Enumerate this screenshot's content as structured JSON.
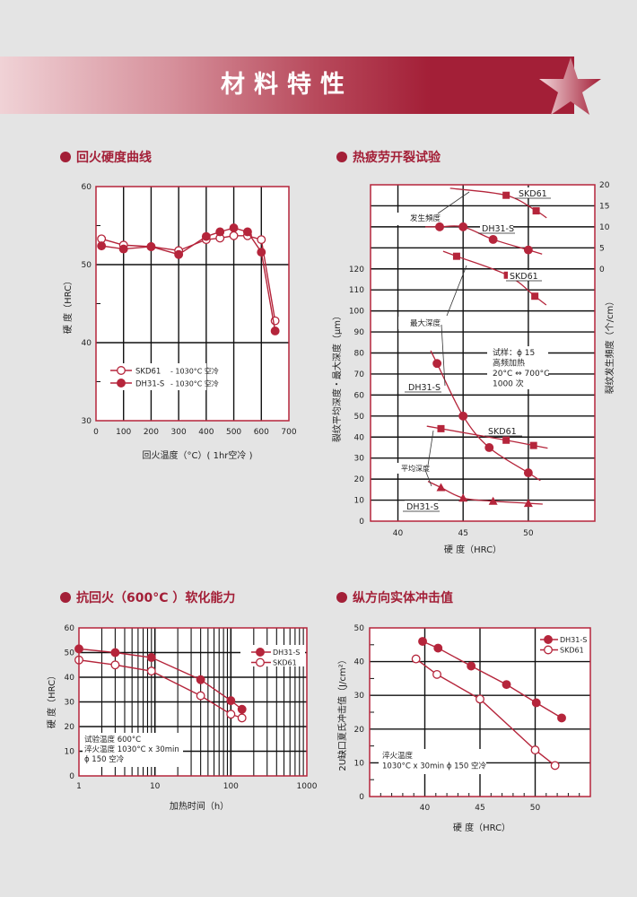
{
  "page": {
    "title": "材料特性",
    "accent_color": "#a31f37",
    "sections": [
      "回火硬度曲线",
      "热疲劳开裂试验",
      "抗回火（600°C ）软化能力",
      "纵方向实体冲击值"
    ]
  },
  "chart_data": [
    {
      "type": "line",
      "xlabel": "回火温度（°C）( 1hr空冷 )",
      "ylabel": "硬 度（HRC）",
      "xlim": [
        0,
        700
      ],
      "ylim": [
        30,
        60
      ],
      "xticks": [
        0,
        100,
        200,
        300,
        400,
        500,
        600,
        700
      ],
      "yticks": [
        30,
        40,
        50,
        60
      ],
      "grid": true,
      "legend": "bottom-left",
      "series": [
        {
          "name": "SKD61",
          "legend_suffix": "- 1030°C 空冷",
          "marker": "circle-open",
          "x": [
            20,
            100,
            200,
            300,
            400,
            450,
            500,
            550,
            600,
            650
          ],
          "y": [
            53.3,
            52.5,
            52.3,
            51.8,
            53.2,
            53.4,
            53.7,
            53.7,
            53.2,
            42.8
          ]
        },
        {
          "name": "DH31-S",
          "legend_suffix": "- 1030°C 空冷",
          "marker": "circle-filled",
          "x": [
            20,
            100,
            200,
            300,
            400,
            450,
            500,
            550,
            600,
            650
          ],
          "y": [
            52.4,
            52.0,
            52.3,
            51.3,
            53.6,
            54.2,
            54.7,
            54.2,
            51.6,
            41.5
          ]
        }
      ]
    },
    {
      "type": "scatter",
      "xlabel": "硬 度（HRC）",
      "ylabel": "裂纹平均深度・最大深度（μm）",
      "y2label": "裂纹发生頻度（个/cm）",
      "xlim": [
        37.9,
        55.1
      ],
      "ylim": [
        0,
        160
      ],
      "y2lim": [
        -60,
        20
      ],
      "xticks": [
        40,
        45,
        50
      ],
      "yticks": [
        0,
        10,
        20,
        30,
        40,
        50,
        60,
        70,
        80,
        90,
        100,
        110,
        120
      ],
      "y2ticks": [
        0,
        5,
        10,
        15,
        20
      ],
      "grid": true,
      "series": [
        {
          "label": "SKD61",
          "group": "发生頻度",
          "axis": "right",
          "marker": "square",
          "x": [
            48.3,
            50.6
          ],
          "y": [
            17.5,
            13.8
          ],
          "trend_from": 44.0,
          "trend_to": 51.4
        },
        {
          "label": "DH31-S",
          "group": "发生頻度",
          "axis": "right",
          "marker": "circle",
          "x": [
            43.2,
            45.0,
            47.3,
            50.0
          ],
          "y": [
            10,
            10,
            7,
            4.5
          ]
        },
        {
          "label": "SKD61",
          "group": "最大深度",
          "axis": "left",
          "marker": "square",
          "x": [
            44.5,
            48.4,
            50.5
          ],
          "y": [
            126,
            117,
            107
          ]
        },
        {
          "label": "DH31-S",
          "group": "最大深度",
          "axis": "left",
          "marker": "circle",
          "x": [
            43.0,
            45.0,
            47.0,
            50.0
          ],
          "y": [
            75,
            50,
            35,
            23
          ]
        },
        {
          "label": "SKD61",
          "group": "平均深度",
          "axis": "left",
          "marker": "square",
          "x": [
            43.3,
            48.3,
            50.4
          ],
          "y": [
            44,
            38.5,
            36
          ]
        },
        {
          "label": "DH31-S",
          "group": "平均深度",
          "axis": "left",
          "marker": "triangle",
          "x": [
            43.3,
            45.0,
            47.3,
            50.0
          ],
          "y": [
            16,
            11,
            9.5,
            8.5
          ]
        }
      ],
      "annotations": {
        "freq": "发生頻度",
        "max": "最大深度",
        "avg": "平均深度",
        "conditions": [
          "试样：ϕ 15",
          "高频加热",
          "20°C ⇔ 700°C",
          "1000 次"
        ]
      }
    },
    {
      "type": "line",
      "xlabel": "加热时间（h）",
      "ylabel": "硬 度（HRC）",
      "xscale": "log",
      "xlim": [
        1,
        1000
      ],
      "ylim": [
        0,
        60
      ],
      "xticks": [
        1,
        10,
        100,
        1000
      ],
      "yticks": [
        0,
        10,
        20,
        30,
        40,
        50,
        60
      ],
      "grid": true,
      "legend": "top-right",
      "series": [
        {
          "name": "DH31-S",
          "marker": "circle-filled",
          "x": [
            1,
            3,
            9,
            40,
            100,
            140
          ],
          "y": [
            51.5,
            50,
            48,
            39,
            30.5,
            27
          ]
        },
        {
          "name": "SKD61",
          "marker": "circle-open",
          "x": [
            1,
            3,
            9,
            40,
            100,
            140
          ],
          "y": [
            47,
            45,
            42.5,
            32.5,
            25,
            23.5
          ]
        }
      ],
      "annotations": [
        "试验温度 600°C",
        "淬火温度 1030°C x 30min",
        "ϕ 150 空冷"
      ]
    },
    {
      "type": "line",
      "xlabel": "硬 度（HRC）",
      "ylabel": "2U缺口夏氏冲击值（J/cm²）",
      "xlim": [
        35,
        55
      ],
      "ylim": [
        0,
        50
      ],
      "xticks": [
        40,
        45,
        50
      ],
      "yticks": [
        0,
        10,
        20,
        30,
        40,
        50
      ],
      "grid": true,
      "legend": "top-right",
      "series": [
        {
          "name": "DH31-S",
          "marker": "circle-filled",
          "x": [
            39.8,
            41.2,
            44.2,
            47.4,
            50.1,
            52.4
          ],
          "y": [
            46,
            44,
            38.7,
            33.2,
            27.8,
            23.3
          ]
        },
        {
          "name": "SKD61",
          "marker": "circle-open",
          "x": [
            39.2,
            41.1,
            45.0,
            50.0,
            51.8
          ],
          "y": [
            40.8,
            36.2,
            28.9,
            13.8,
            9.2
          ]
        }
      ],
      "annotations": [
        "淬火温度",
        "1030°C x 30min ϕ 150 空冷"
      ]
    }
  ]
}
